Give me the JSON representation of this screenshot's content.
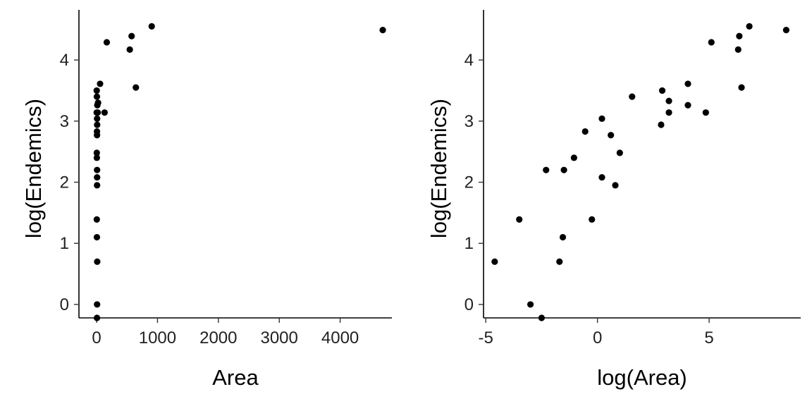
{
  "chart_data": [
    {
      "type": "scatter",
      "title": "",
      "xlabel": "Area",
      "ylabel": "log(Endemics)",
      "xlim": [
        -290,
        4850
      ],
      "ylim": [
        -0.22,
        4.82
      ],
      "xticks": [
        0,
        1000,
        2000,
        3000,
        4000
      ],
      "xtick_labels": [
        "0",
        "1000",
        "2000",
        "3000",
        "4000"
      ],
      "yticks": [
        0,
        1,
        2,
        3,
        4
      ],
      "ytick_labels": [
        "0",
        "1",
        "2",
        "3",
        "4"
      ],
      "grid": false,
      "point_color": "#000000",
      "points": [
        [
          10,
          0.7
        ],
        [
          8,
          0.0
        ],
        [
          6,
          -0.22
        ],
        [
          5,
          1.1
        ],
        [
          3,
          1.39
        ],
        [
          8,
          1.95
        ],
        [
          8,
          2.08
        ],
        [
          8,
          2.2
        ],
        [
          4,
          2.4
        ],
        [
          3,
          2.48
        ],
        [
          7,
          2.77
        ],
        [
          6,
          2.83
        ],
        [
          9,
          2.94
        ],
        [
          8,
          3.04
        ],
        [
          2,
          3.14
        ],
        [
          18,
          3.14
        ],
        [
          12,
          3.26
        ],
        [
          24,
          3.3
        ],
        [
          5,
          3.4
        ],
        [
          2,
          3.5
        ],
        [
          57,
          3.61
        ],
        [
          131,
          3.14
        ],
        [
          167,
          4.29
        ],
        [
          545,
          4.17
        ],
        [
          575,
          4.39
        ],
        [
          645,
          3.55
        ],
        [
          905,
          4.55
        ],
        [
          4700,
          4.49
        ]
      ]
    },
    {
      "type": "scatter",
      "title": "",
      "xlabel": "log(Area)",
      "ylabel": "log(Endemics)",
      "xlim": [
        -5.1,
        9.1
      ],
      "ylim": [
        -0.22,
        4.82
      ],
      "xticks": [
        -5,
        0,
        5
      ],
      "xtick_labels": [
        "-5",
        "0",
        "5"
      ],
      "yticks": [
        0,
        1,
        2,
        3,
        4
      ],
      "ytick_labels": [
        "0",
        "1",
        "2",
        "3",
        "4"
      ],
      "grid": false,
      "point_color": "#000000",
      "points": [
        [
          -4.6,
          0.7
        ],
        [
          -3.5,
          1.39
        ],
        [
          -3.0,
          0.0
        ],
        [
          -2.5,
          -0.22
        ],
        [
          -2.3,
          2.2
        ],
        [
          -1.7,
          0.7
        ],
        [
          -1.55,
          1.1
        ],
        [
          -1.5,
          2.2
        ],
        [
          -1.05,
          2.4
        ],
        [
          -0.55,
          2.83
        ],
        [
          -0.25,
          1.39
        ],
        [
          0.2,
          2.08
        ],
        [
          0.2,
          3.04
        ],
        [
          0.6,
          2.77
        ],
        [
          0.8,
          1.95
        ],
        [
          1.0,
          2.48
        ],
        [
          1.55,
          3.4
        ],
        [
          2.85,
          2.94
        ],
        [
          2.9,
          3.5
        ],
        [
          3.2,
          3.33
        ],
        [
          3.2,
          3.14
        ],
        [
          4.05,
          3.61
        ],
        [
          4.05,
          3.26
        ],
        [
          4.85,
          3.14
        ],
        [
          5.1,
          4.29
        ],
        [
          6.3,
          4.17
        ],
        [
          6.35,
          4.39
        ],
        [
          6.45,
          3.55
        ],
        [
          6.8,
          4.55
        ],
        [
          8.45,
          4.49
        ]
      ]
    }
  ]
}
